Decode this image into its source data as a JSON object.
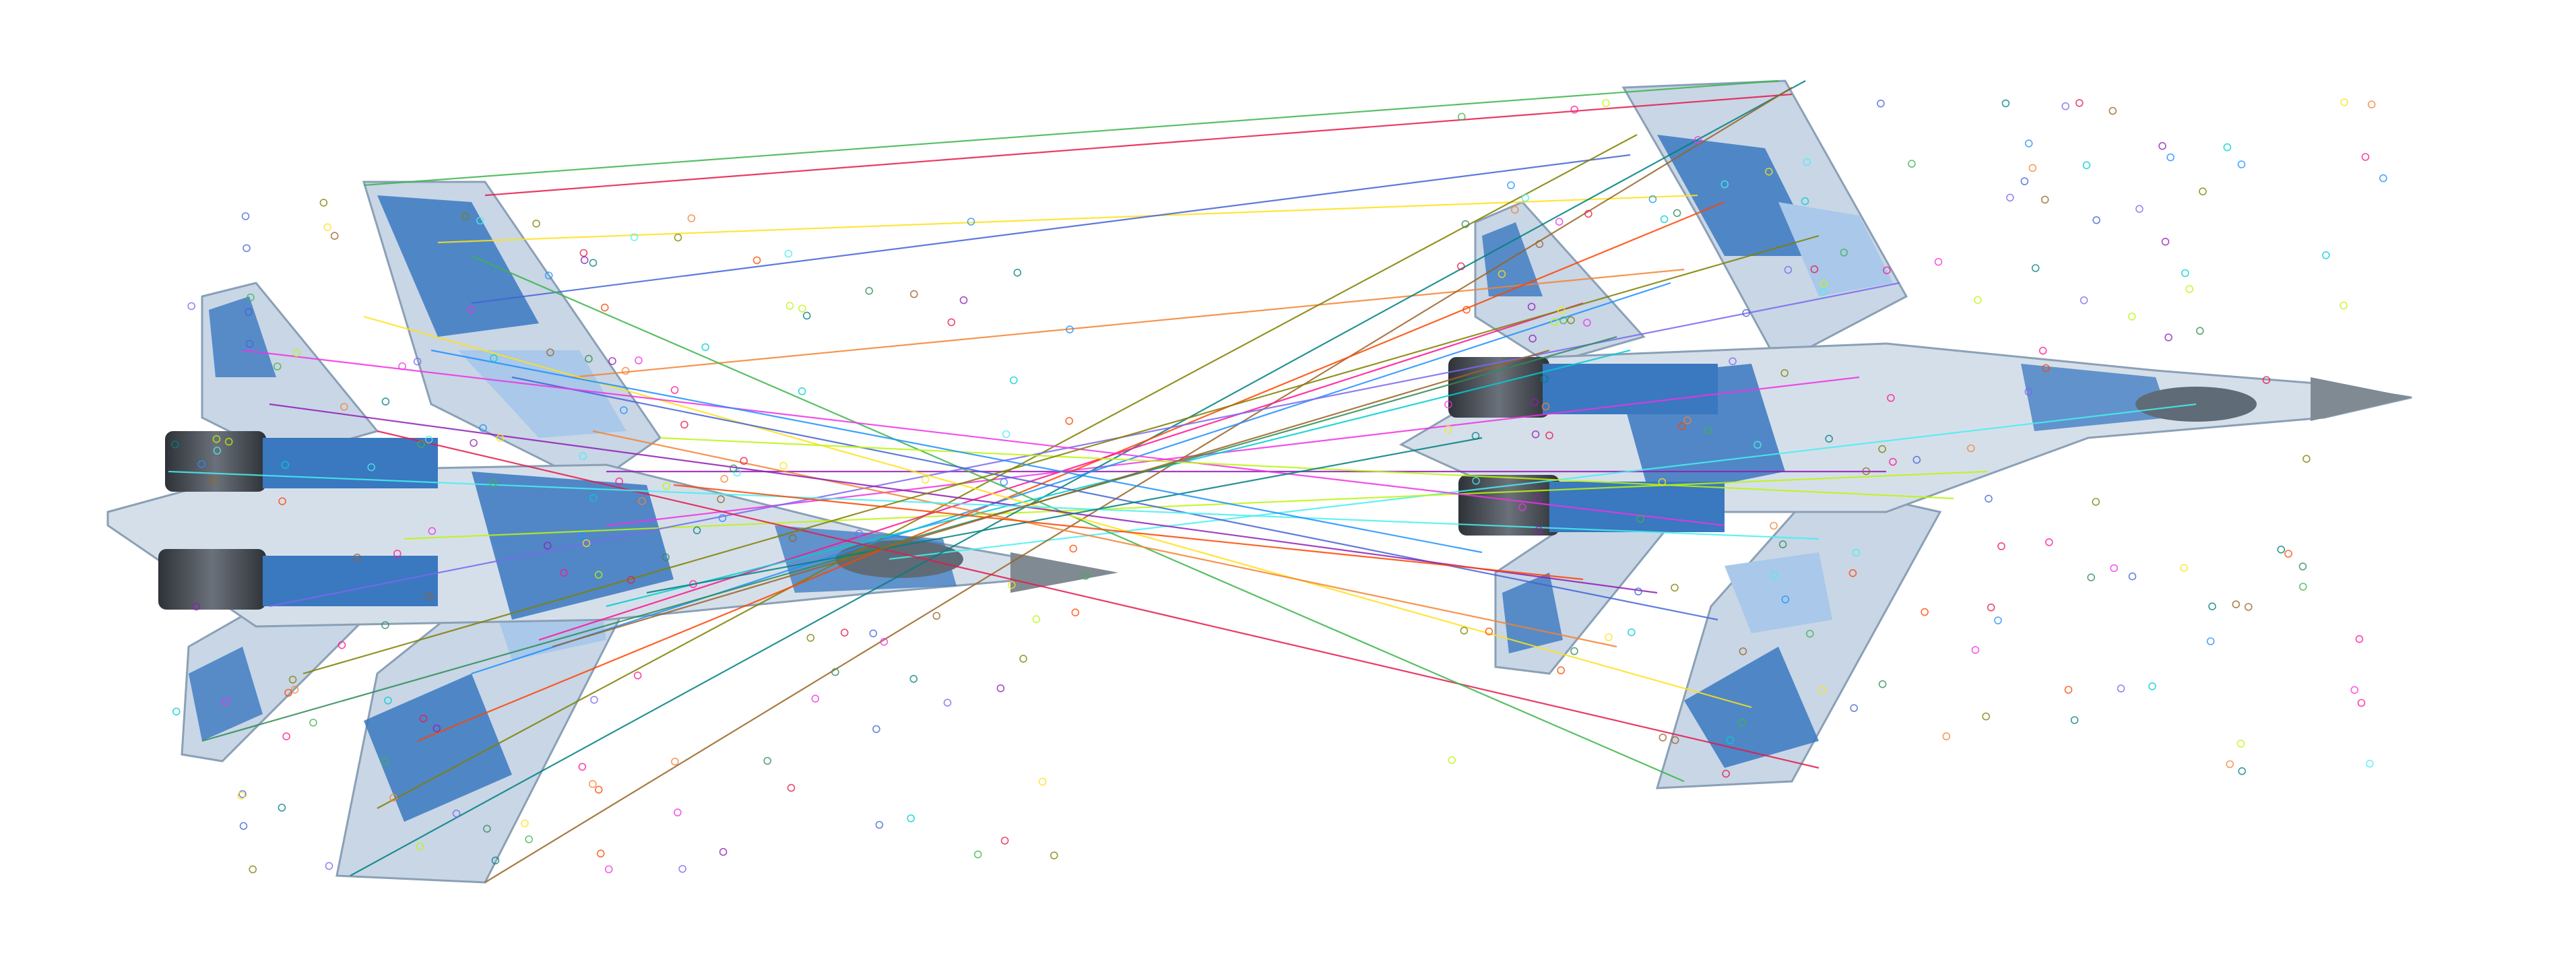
{
  "image": {
    "description_hidden": "",
    "matches": {
      "colors": [
        "#e6194b",
        "#3cb44b",
        "#ffe119",
        "#4363d8",
        "#f58231",
        "#911eb4",
        "#46f0f0",
        "#f032e6",
        "#bcf60c",
        "#008080",
        "#9a6324",
        "#808000",
        "#ff4500",
        "#1e90ff",
        "#ff1493",
        "#00ced1",
        "#7b68ee",
        "#2e8b57"
      ]
    },
    "camouflage": {
      "base": "#c8d6e6",
      "dark": "#3a78c0",
      "light": "#a9c8ea",
      "nose": "#7f8a93",
      "engine": "#3b3f45",
      "canopy": "#5f6b76"
    }
  }
}
